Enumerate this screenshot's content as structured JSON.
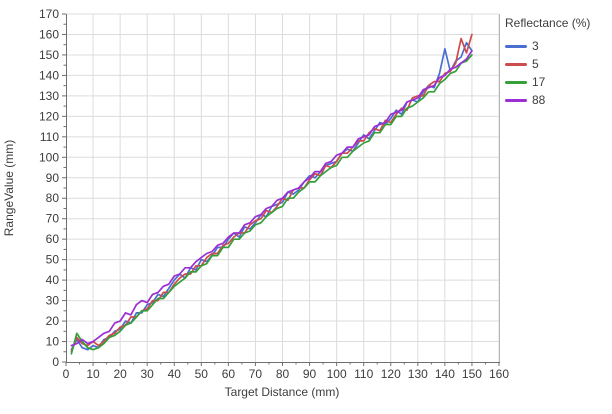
{
  "window": {
    "background": "#ffffff"
  },
  "axis_style": {
    "axis_color": "#707070",
    "border_color": "#b4b4b4",
    "grid_color": "#dcdcdc",
    "tick_label_color": "#3d3d3d",
    "title_color": "#3d3d3d"
  },
  "chart_data": {
    "type": "line",
    "title": "",
    "xlabel": "Target Distance (mm)",
    "ylabel": "RangeValue (mm)",
    "xlim": [
      0,
      160
    ],
    "ylim": [
      0,
      170
    ],
    "x_tick_step": 10,
    "y_tick_step": 10,
    "minor_tick_step": 5,
    "grid": true,
    "legend": {
      "title": "Reflectance (%)",
      "position": "right"
    },
    "x": [
      2,
      4,
      6,
      8,
      10,
      12,
      14,
      16,
      18,
      20,
      22,
      24,
      26,
      28,
      30,
      32,
      34,
      36,
      38,
      40,
      42,
      44,
      46,
      48,
      50,
      52,
      54,
      56,
      58,
      60,
      62,
      64,
      66,
      68,
      70,
      72,
      74,
      76,
      78,
      80,
      82,
      84,
      86,
      88,
      90,
      92,
      94,
      96,
      98,
      100,
      102,
      104,
      106,
      108,
      110,
      112,
      114,
      116,
      118,
      120,
      122,
      124,
      126,
      128,
      130,
      132,
      134,
      136,
      138,
      140,
      142,
      144,
      146,
      148,
      150
    ],
    "series": [
      {
        "name": "3",
        "color": "#4a6fd0",
        "values": [
          6,
          11,
          7,
          6,
          8,
          7,
          11,
          12,
          15,
          16,
          20,
          19,
          24,
          24,
          28,
          29,
          33,
          32,
          36,
          40,
          43,
          41,
          46,
          45,
          50,
          49,
          52,
          56,
          56,
          60,
          63,
          61,
          66,
          65,
          68,
          72,
          71,
          76,
          77,
          78,
          83,
          82,
          84,
          88,
          91,
          90,
          93,
          96,
          97,
          98,
          102,
          104,
          103,
          107,
          111,
          109,
          113,
          117,
          116,
          119,
          123,
          121,
          127,
          128,
          127,
          132,
          135,
          134,
          141,
          153,
          142,
          147,
          149,
          156,
          152
        ]
      },
      {
        "name": "5",
        "color": "#cc4c4c",
        "values": [
          5,
          12,
          9,
          8,
          10,
          8,
          10,
          13,
          14,
          17,
          18,
          22,
          22,
          25,
          26,
          30,
          30,
          34,
          34,
          38,
          41,
          43,
          43,
          47,
          47,
          51,
          53,
          53,
          57,
          58,
          61,
          63,
          63,
          67,
          69,
          70,
          74,
          73,
          76,
          80,
          79,
          84,
          85,
          85,
          89,
          92,
          91,
          96,
          95,
          98,
          102,
          102,
          105,
          108,
          108,
          112,
          114,
          113,
          118,
          117,
          121,
          124,
          123,
          129,
          130,
          130,
          135,
          137,
          137,
          141,
          142,
          146,
          158,
          151,
          160
        ]
      },
      {
        "name": "17",
        "color": "#35a03a",
        "values": [
          4,
          14,
          10,
          7,
          6,
          7,
          9,
          12,
          13,
          15,
          18,
          19,
          22,
          25,
          25,
          28,
          31,
          31,
          34,
          37,
          39,
          41,
          44,
          44,
          47,
          48,
          52,
          52,
          56,
          56,
          60,
          60,
          63,
          64,
          67,
          68,
          71,
          73,
          75,
          76,
          80,
          80,
          83,
          85,
          88,
          88,
          91,
          93,
          95,
          96,
          100,
          100,
          103,
          105,
          107,
          108,
          112,
          112,
          116,
          116,
          120,
          120,
          124,
          125,
          127,
          129,
          132,
          132,
          136,
          138,
          141,
          142,
          146,
          147,
          150
        ]
      },
      {
        "name": "88",
        "color": "#9c2fd4",
        "values": [
          8,
          9,
          11,
          9,
          10,
          12,
          14,
          15,
          19,
          20,
          24,
          23,
          28,
          30,
          29,
          33,
          34,
          37,
          38,
          42,
          43,
          46,
          46,
          49,
          51,
          53,
          54,
          57,
          58,
          61,
          63,
          63,
          67,
          68,
          71,
          72,
          75,
          76,
          79,
          80,
          83,
          84,
          85,
          88,
          90,
          93,
          93,
          97,
          98,
          101,
          102,
          105,
          105,
          109,
          110,
          111,
          115,
          116,
          117,
          121,
          122,
          123,
          127,
          128,
          129,
          133,
          134,
          135,
          139,
          140,
          143,
          144,
          146,
          148,
          152
        ]
      }
    ]
  }
}
